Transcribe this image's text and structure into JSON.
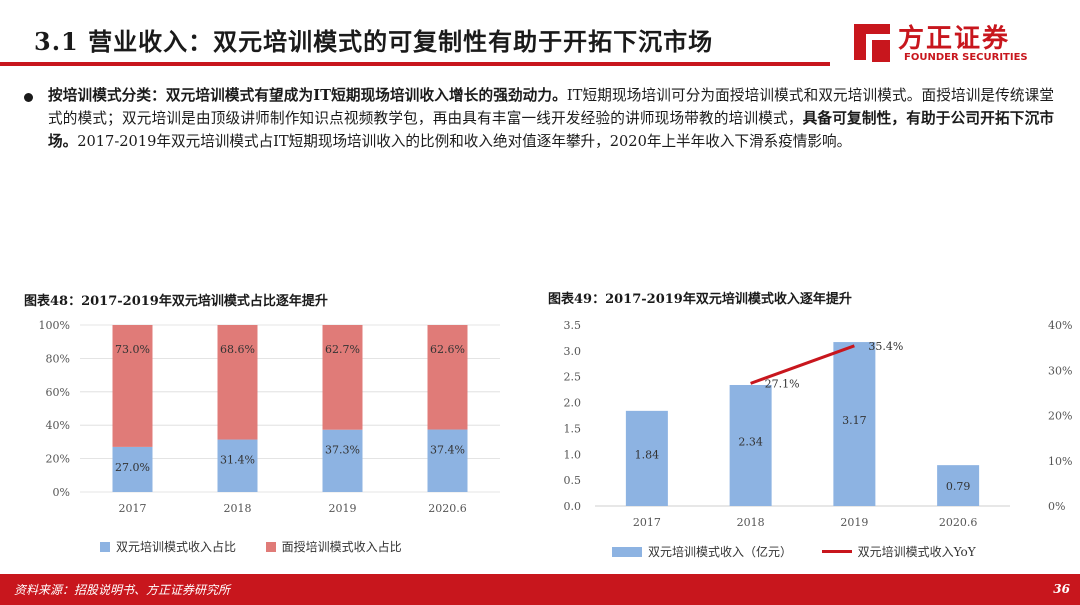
{
  "header": {
    "title": "3.1 营业收入：双元培训模式的可复制性有助于开拓下沉市场",
    "logo_text": "方正证券",
    "logo_sub": "FOUNDER SECURITIES"
  },
  "bullet": {
    "bold1": "按培训模式分类：双元培训模式有望成为IT短期现场培训收入增长的强劲动力。",
    "text1": "IT短期现场培训可分为面授培训模式和双元培训模式。面授培训是传统课堂式的模式；双元培训是由顶级讲师制作知识点视频教学包，再由具有丰富一线开发经验的讲师现场带教的培训模式，",
    "bold2": "具备可复制性，有助于公司开拓下沉市场。",
    "text2": "2017-2019年双元培训模式占IT短期现场培训收入的比例和收入绝对值逐年攀升，2020年上半年收入下滑系疫情影响。"
  },
  "fig48": {
    "title": "图表48：2017-2019年双元培训模式占比逐年提升"
  },
  "fig49": {
    "title": "图表49：2017-2019年双元培训模式收入逐年提升"
  },
  "footer": {
    "source": "资料来源：招股说明书、方正证券研究所",
    "page": "36"
  },
  "chart_data": [
    {
      "type": "bar",
      "stacked": true,
      "categories": [
        "2017",
        "2018",
        "2019",
        "2020.6"
      ],
      "series": [
        {
          "name": "双元培训模式收入占比",
          "values": [
            27.0,
            31.4,
            37.3,
            37.4
          ],
          "labels": [
            "27.0%",
            "31.4%",
            "37.3%",
            "37.4%"
          ],
          "color": "#8db3e2"
        },
        {
          "name": "面授培训模式收入占比",
          "values": [
            73.0,
            68.6,
            62.7,
            62.6
          ],
          "labels": [
            "73.0%",
            "68.6%",
            "62.7%",
            "62.6%"
          ],
          "color": "#e07b78"
        }
      ],
      "ylim": [
        0,
        100
      ],
      "yticks": [
        "0%",
        "20%",
        "40%",
        "60%",
        "80%",
        "100%"
      ],
      "legend": "bottom"
    },
    {
      "type": "bar",
      "categories": [
        "2017",
        "2018",
        "2019",
        "2020.6"
      ],
      "series": [
        {
          "name": "双元培训模式收入（亿元）",
          "values": [
            1.84,
            2.34,
            3.17,
            0.79
          ],
          "labels": [
            "1.84",
            "2.34",
            "3.17",
            "0.79"
          ],
          "color": "#8db3e2",
          "axis": "left"
        },
        {
          "name": "双元培训模式收入YoY",
          "type": "line",
          "values": [
            null,
            27.1,
            35.4,
            null
          ],
          "labels": [
            "",
            "27.1%",
            "35.4%",
            ""
          ],
          "color": "#c8161d",
          "axis": "right"
        }
      ],
      "ylim_left": [
        0,
        3.5
      ],
      "yticks_left": [
        "0.0",
        "0.5",
        "1.0",
        "1.5",
        "2.0",
        "2.5",
        "3.0",
        "3.5"
      ],
      "ylim_right": [
        0,
        40
      ],
      "yticks_right": [
        "0%",
        "10%",
        "20%",
        "30%",
        "40%"
      ],
      "legend": "bottom"
    }
  ]
}
